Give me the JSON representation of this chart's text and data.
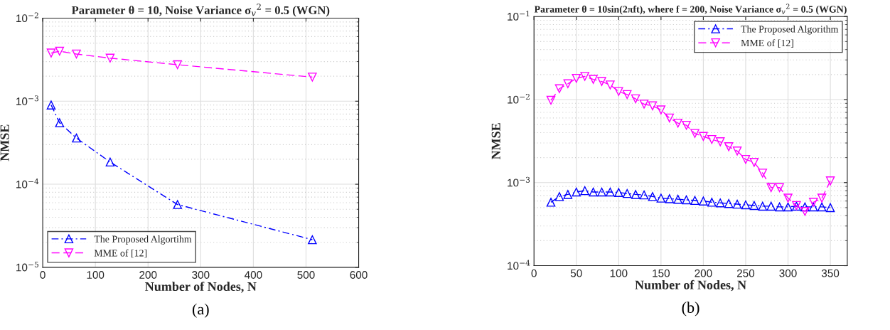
{
  "chart_data": [
    {
      "type": "line",
      "title": "Parameter θ = 10, Noise Variance σ$_{v}$$^{2}$ = 0.5 (WGN)",
      "xlabel": "Number of Nodes, N",
      "ylabel": "NMSE",
      "log": "y",
      "grid": true,
      "legend": "bottom left",
      "annotations": [
        "(a)"
      ],
      "xlim": [
        0,
        600
      ],
      "xticks": [
        0,
        100,
        200,
        300,
        400,
        500,
        600
      ],
      "ylim": [
        1e-05,
        0.01
      ],
      "yticks": [
        {
          "value": 1e-05,
          "label": "10$^{−5}$"
        },
        {
          "value": 0.0001,
          "label": "10$^{−4}$"
        },
        {
          "value": 0.001,
          "label": "10$^{−3}$"
        },
        {
          "value": 0.01,
          "label": "10$^{−2}$"
        }
      ],
      "series": [
        {
          "name": "The Proposed Algortihm",
          "color": "#0000ff",
          "marker": "triangle",
          "line_style": "dashdot",
          "x": [
            16,
            32,
            64,
            128,
            256,
            512
          ],
          "values": [
            0.0009,
            0.00055,
            0.00036,
            0.000185,
            5.7e-05,
            2.15e-05
          ]
        },
        {
          "name": "MME of [12]",
          "color": "#ff00ff",
          "marker": "triangle_down",
          "line_style": "dashed",
          "x": [
            16,
            32,
            64,
            128,
            256,
            512
          ],
          "values": [
            0.0038,
            0.004,
            0.0037,
            0.0033,
            0.00275,
            0.00195
          ]
        }
      ]
    },
    {
      "type": "line",
      "title": "Parameter θ = 10sin(2πft), where f = 200, Noise Variance σ$_{v}$$^{2}$ = 0.5 (WGN)",
      "xlabel": "Number of Nodes, N",
      "ylabel": "NMSE",
      "log": "y",
      "grid": true,
      "legend": "top right",
      "annotations": [
        "(b)"
      ],
      "xlim": [
        0,
        370
      ],
      "xticks": [
        0,
        50,
        100,
        150,
        200,
        250,
        300,
        350
      ],
      "ylim": [
        0.0001,
        0.1
      ],
      "yticks": [
        {
          "value": 0.0001,
          "label": "10$^{−4}$"
        },
        {
          "value": 0.001,
          "label": "10$^{−3}$"
        },
        {
          "value": 0.01,
          "label": "10$^{−2}$"
        },
        {
          "value": 0.1,
          "label": "10$^{−1}$"
        }
      ],
      "series": [
        {
          "name": "The Proposed Algorithm",
          "color": "#0000ff",
          "marker": "triangle",
          "line_style": "dashdot",
          "x": [
            20,
            30,
            40,
            50,
            60,
            70,
            80,
            90,
            100,
            110,
            120,
            130,
            140,
            150,
            160,
            170,
            180,
            190,
            200,
            210,
            220,
            230,
            240,
            250,
            260,
            270,
            280,
            290,
            300,
            310,
            320,
            330,
            340,
            350
          ],
          "values": [
            0.00058,
            0.00068,
            0.00072,
            0.00077,
            0.0008,
            0.00077,
            0.00077,
            0.00077,
            0.00076,
            0.00074,
            0.00072,
            0.00071,
            0.00068,
            0.00065,
            0.00064,
            0.00063,
            0.00062,
            0.00061,
            0.0006,
            0.00058,
            0.00057,
            0.00056,
            0.00055,
            0.00054,
            0.00053,
            0.00052,
            0.00052,
            0.00051,
            0.00051,
            0.00052,
            0.00051,
            0.00051,
            0.00051,
            0.0005
          ]
        },
        {
          "name": "MME of [12]",
          "color": "#ff00ff",
          "marker": "triangle_down",
          "line_style": "dashed",
          "x": [
            20,
            30,
            40,
            50,
            60,
            70,
            80,
            90,
            100,
            110,
            120,
            130,
            140,
            150,
            160,
            170,
            180,
            190,
            200,
            210,
            220,
            230,
            240,
            250,
            260,
            270,
            280,
            290,
            300,
            310,
            320,
            330,
            340,
            350
          ],
          "values": [
            0.0098,
            0.0135,
            0.0155,
            0.018,
            0.019,
            0.0175,
            0.0165,
            0.015,
            0.0125,
            0.0115,
            0.0102,
            0.0088,
            0.0084,
            0.0075,
            0.006,
            0.0052,
            0.0049,
            0.0039,
            0.0036,
            0.0033,
            0.0031,
            0.0027,
            0.0024,
            0.0019,
            0.00175,
            0.0013,
            0.00087,
            0.00087,
            0.00065,
            0.00053,
            0.00045,
            0.00058,
            0.00065,
            0.00105
          ]
        }
      ]
    }
  ]
}
